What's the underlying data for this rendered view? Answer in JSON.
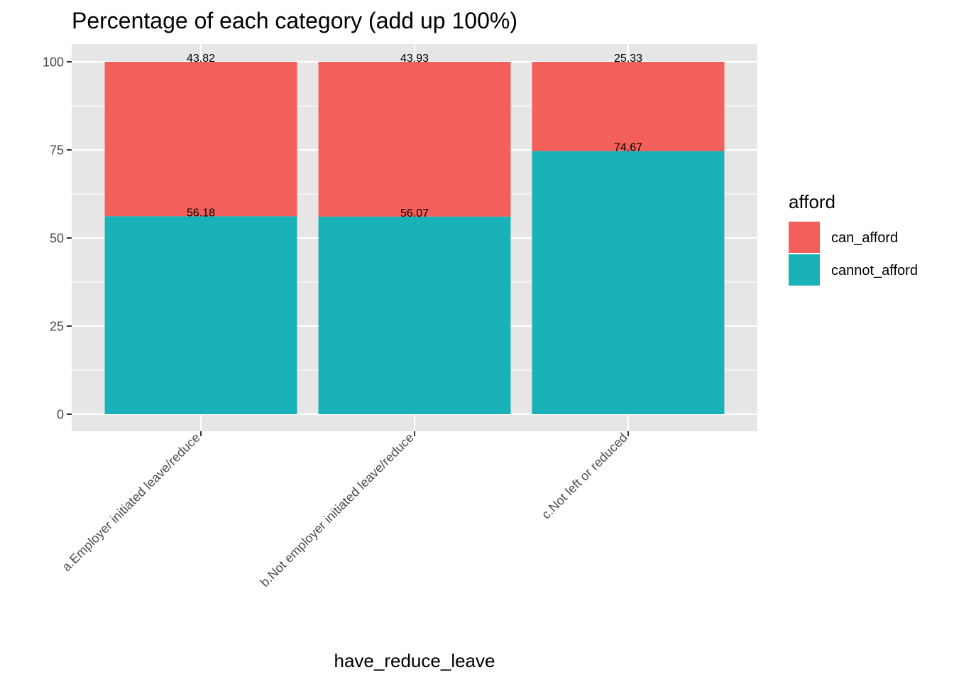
{
  "chart_data": {
    "type": "bar",
    "stacked": true,
    "title": "Percentage of each category (add up 100%)",
    "xlabel": "have_reduce_leave",
    "ylabel": "",
    "ylim": [
      0,
      100
    ],
    "yticks": [
      0,
      25,
      50,
      75,
      100
    ],
    "grid": true,
    "categories": [
      "a.Employer initiated leave/reduce",
      "b.Not employer initiated leave/reduce",
      "c.Not left or reduced"
    ],
    "series": [
      {
        "name": "cannot_afford",
        "color": "#19B2B8",
        "values": [
          56.18,
          56.07,
          74.67
        ]
      },
      {
        "name": "can_afford",
        "color": "#F35F5B",
        "values": [
          43.82,
          43.93,
          25.33
        ]
      }
    ],
    "legend": {
      "title": "afford",
      "position": "right",
      "entries": [
        {
          "label": "can_afford",
          "color": "#F35F5B"
        },
        {
          "label": "cannot_afford",
          "color": "#19B2B8"
        }
      ]
    },
    "colors": {
      "panel": "#E6E6E6",
      "grid": "#FFFFFF",
      "tick": "#333333"
    }
  }
}
